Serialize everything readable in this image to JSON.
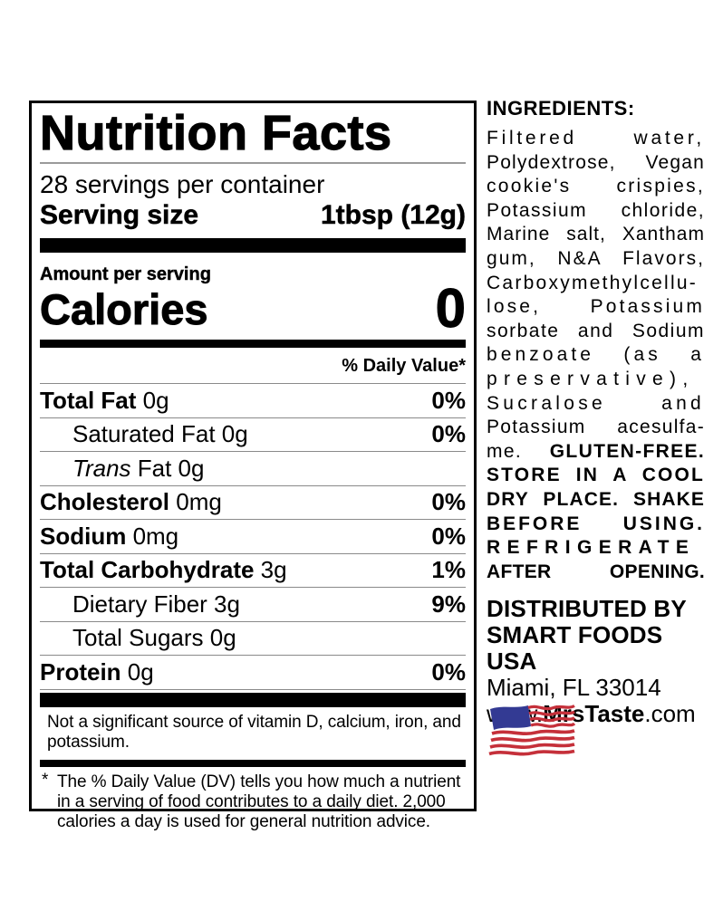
{
  "panel": {
    "title": "Nutrition Facts",
    "servings_per_container": "28 servings per container",
    "serving_size_label": "Serving size",
    "serving_size_value": "1tbsp (12g)",
    "amount_per_serving": "Amount per serving",
    "calories_label": "Calories",
    "calories_value": "0",
    "daily_value_header": "% Daily Value*",
    "rows": [
      {
        "strong": "Total Fat",
        "plain": " 0g",
        "dv": "0%"
      },
      {
        "plain": "Saturated Fat 0g",
        "dv": "0%",
        "indent": true
      },
      {
        "italic": "Trans",
        "plain": " Fat 0g",
        "dv": "",
        "indent": true
      },
      {
        "strong": "Cholesterol",
        "plain": " 0mg",
        "dv": "0%"
      },
      {
        "strong": "Sodium",
        "plain": " 0mg",
        "dv": "0%"
      },
      {
        "strong": "Total Carbohydrate",
        "plain": " 3g",
        "dv": "1%"
      },
      {
        "plain": "Dietary Fiber 3g",
        "dv": "9%",
        "indent": true
      },
      {
        "plain": "Total Sugars 0g",
        "dv": "",
        "indent": true
      },
      {
        "strong": "Protein",
        "plain": " 0g",
        "dv": "0%"
      }
    ],
    "not_significant": "Not a significant source of vitamin D, calcium, iron, and potassium.",
    "footnote_marker": "*",
    "footnote": "The % Daily Value (DV) tells you how much a nutrient in a serving of food contributes to a daily diet. 2,000 calories a day is used for general nutrition advice."
  },
  "ingredients": {
    "heading": "INGREDIENTS:",
    "lines": [
      {
        "normal": "Filtered water,"
      },
      {
        "normal": "Polydextrose, Vegan"
      },
      {
        "normal": "cookie's crispies,"
      },
      {
        "normal": "Potassium chloride,"
      },
      {
        "normal": "Marine salt, Xantham"
      },
      {
        "normal": "gum, N&A Flavors,"
      },
      {
        "normal": "Carboxymethylcellu-"
      },
      {
        "normal": "lose, Potassium"
      },
      {
        "normal": "sorbate and Sodium"
      },
      {
        "normal": "benzoate (as a"
      },
      {
        "normal": "preservative),"
      },
      {
        "normal": "Sucralose and"
      },
      {
        "normal": "Potassium acesulfa-"
      },
      {
        "normal": "me. ",
        "bold": "GLUTEN-FREE."
      },
      {
        "bold": "STORE IN A COOL"
      },
      {
        "bold": "DRY PLACE. SHAKE"
      },
      {
        "bold": "BEFORE USING."
      },
      {
        "bold": "REFRIGERATE"
      },
      {
        "bold": "AFTER OPENING."
      }
    ]
  },
  "distributor": {
    "line1": "DISTRIBUTED BY",
    "line2": "SMART FOODS USA",
    "city": "Miami, FL 33014",
    "website_prefix": "www.",
    "website_bold": "MrsTaste",
    "website_suffix": ".com"
  },
  "flag_icon": "us-flag",
  "colors": {
    "flag_blue": "#333A93",
    "flag_red": "#C5303A"
  }
}
